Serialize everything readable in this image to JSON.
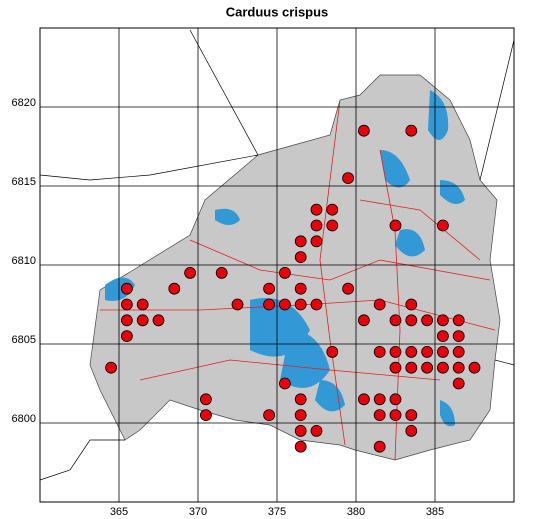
{
  "chart_data": {
    "type": "scatter",
    "title": "Carduus crispus",
    "series": [
      {
        "color": "#e8000b",
        "x": [
          365.5,
          365.5,
          365.5,
          365.5,
          364.5,
          366.5,
          366.5,
          367.5,
          368.5,
          369.5,
          371.5,
          370.5,
          370.5,
          372.5,
          374.5,
          374.5,
          374.5,
          375.5,
          375.5,
          375.5,
          376.5,
          376.5,
          376.5,
          376.5,
          376.5,
          376.5,
          376.5,
          376.5,
          377.5,
          377.5,
          377.5,
          377.5,
          377.5,
          378.5,
          378.5,
          378.5,
          379.5,
          379.5,
          380.5,
          380.5,
          380.5,
          381.5,
          381.5,
          381.5,
          381.5,
          381.5,
          382.5,
          382.5,
          382.5,
          382.5,
          382.5,
          382.5,
          383.5,
          383.5,
          383.5,
          383.5,
          383.5,
          383.5,
          383.5,
          384.5,
          384.5,
          384.5,
          385.5,
          385.5,
          385.5,
          385.5,
          385.5,
          386.5,
          386.5,
          386.5,
          386.5,
          386.5,
          387.5
        ],
        "y": [
          6808.5,
          6807.5,
          6806.5,
          6805.5,
          6803.5,
          6807.5,
          6806.5,
          6806.5,
          6808.5,
          6809.5,
          6809.5,
          6801.5,
          6800.5,
          6807.5,
          6808.5,
          6807.5,
          6800.5,
          6809.5,
          6807.5,
          6802.5,
          6811.5,
          6810.5,
          6808.5,
          6807.5,
          6801.5,
          6800.5,
          6799.5,
          6798.5,
          6813.5,
          6812.5,
          6811.5,
          6807.5,
          6799.5,
          6813.5,
          6812.5,
          6804.5,
          6815.5,
          6808.5,
          6818.5,
          6806.5,
          6801.5,
          6807.5,
          6804.5,
          6801.5,
          6800.5,
          6798.5,
          6812.5,
          6806.5,
          6804.5,
          6803.5,
          6801.5,
          6800.5,
          6818.5,
          6807.5,
          6806.5,
          6804.5,
          6803.5,
          6800.5,
          6799.5,
          6806.5,
          6804.5,
          6803.5,
          6812.5,
          6806.5,
          6805.5,
          6804.5,
          6803.5,
          6806.5,
          6805.5,
          6804.5,
          6803.5,
          6802.5,
          6803.5
        ]
      }
    ],
    "xlim": [
      360,
      390
    ],
    "ylim": [
      6795,
      6825
    ],
    "xticks": [
      365,
      370,
      375,
      380,
      385
    ],
    "yticks": [
      6800,
      6805,
      6810,
      6815,
      6820
    ],
    "grid": true
  }
}
